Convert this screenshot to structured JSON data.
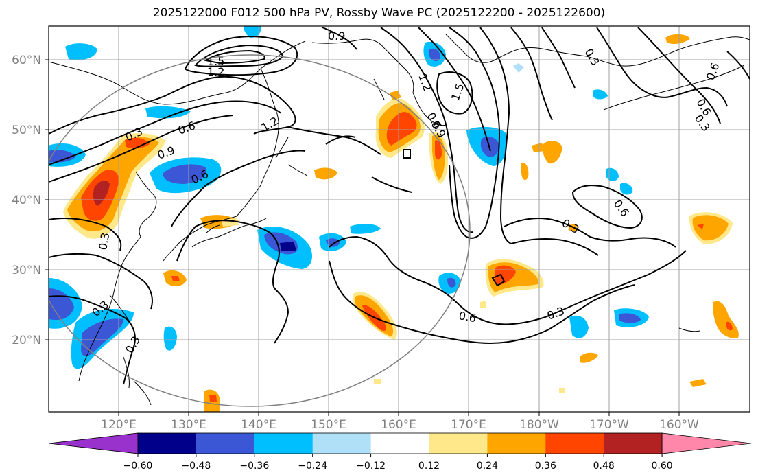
{
  "title": "2025122000 F012 500 hPa PV, Rossby Wave PC (2025122200 - 2025122600)",
  "lat_labels": [
    "60°N",
    "50°N",
    "40°N",
    "30°N",
    "20°N"
  ],
  "lon_labels": [
    "120°E",
    "130°E",
    "140°E",
    "150°E",
    "160°E",
    "170°E",
    "180°W",
    "170°W",
    "160°W"
  ],
  "contour_labels": [
    "0.9",
    "1.5",
    "1.2",
    "0.3",
    "0.6",
    "0.9",
    "0.6",
    "1.2",
    "0.3",
    "0.3",
    "0.3",
    "0.6",
    "0.3",
    "0.6",
    "0.9",
    "1.2",
    "1.5",
    "0.3",
    "0.6",
    "0.6",
    "0.3",
    "0.6",
    "0.3"
  ],
  "colorbar": {
    "ticks": [
      "−0.60",
      "−0.48",
      "−0.36",
      "−0.24",
      "−0.12",
      "0.12",
      "0.24",
      "0.36",
      "0.48",
      "0.60"
    ],
    "colors": [
      "#9932cc",
      "#00008b",
      "#3b57d6",
      "#00bfff",
      "#b0e0f8",
      "#ffffff",
      "#ffe88a",
      "#ffa500",
      "#ff4500",
      "#b22222",
      "#ff88aa"
    ]
  },
  "colors": {
    "blue_light": "#b0e0f8",
    "blue": "#00bfff",
    "blue_dark": "#3b57d6",
    "navy": "#00008b",
    "yellow": "#ffe88a",
    "orange": "#ffa500",
    "red": "#ff4500"
  }
}
